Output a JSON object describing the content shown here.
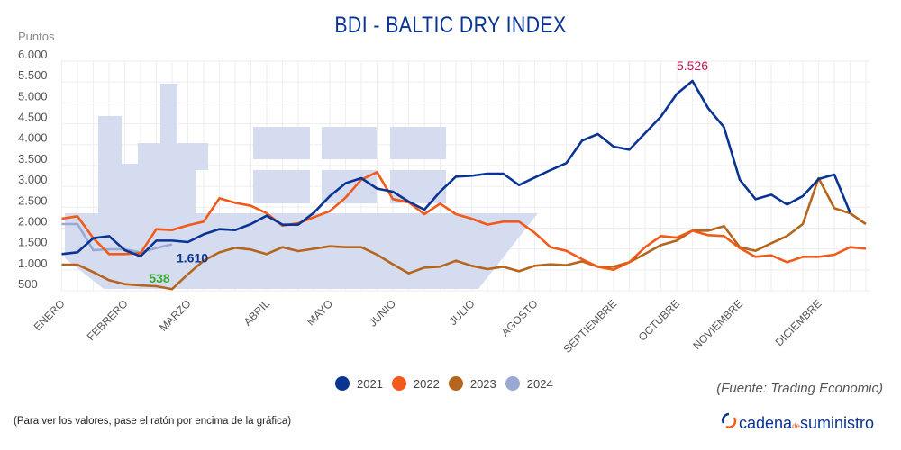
{
  "chart_data": {
    "type": "line",
    "title": "BDI - BALTIC DRY INDEX",
    "ylabel": "Puntos",
    "ylim": [
      500,
      6000
    ],
    "yticks": [
      "500",
      "1.000",
      "1.500",
      "2.000",
      "2.500",
      "3.000",
      "3.500",
      "4.000",
      "4.500",
      "5.000",
      "5.500",
      "6.000"
    ],
    "ytick_values": [
      500,
      1000,
      1500,
      2000,
      2500,
      3000,
      3500,
      4000,
      4500,
      5000,
      5500,
      6000
    ],
    "grid": true,
    "legend_placement": "bottom",
    "months": [
      {
        "label": "ENERO",
        "index": 0
      },
      {
        "label": "FEBRERO",
        "index": 4
      },
      {
        "label": "MARZO",
        "index": 8
      },
      {
        "label": "ABRIL",
        "index": 13
      },
      {
        "label": "MAYO",
        "index": 17
      },
      {
        "label": "JUNIO",
        "index": 21
      },
      {
        "label": "JULIO",
        "index": 26
      },
      {
        "label": "AGOSTO",
        "index": 30
      },
      {
        "label": "SEPTIEMBRE",
        "index": 35
      },
      {
        "label": "OCTUBRE",
        "index": 39
      },
      {
        "label": "NOVIEMBRE",
        "index": 43
      },
      {
        "label": "DICIEMBRE",
        "index": 48
      }
    ],
    "series": [
      {
        "name": "2021",
        "color": "#0a3494",
        "values": [
          1377,
          1420,
          1758,
          1808,
          1470,
          1327,
          1700,
          1700,
          1665,
          1850,
          1974,
          1952,
          2096,
          2297,
          2082,
          2082,
          2370,
          2765,
          3074,
          3196,
          2945,
          2873,
          2635,
          2441,
          2873,
          3232,
          3253,
          3304,
          3304,
          3030,
          3210,
          3390,
          3556,
          4095,
          4253,
          3951,
          3879,
          4275,
          4670,
          5209,
          5526,
          4872,
          4418,
          3160,
          2693,
          2801,
          2564,
          2765,
          3175,
          3282,
          2369
        ]
      },
      {
        "name": "2022",
        "color": "#f15a1a",
        "values": [
          2225,
          2283,
          1758,
          1377,
          1377,
          1399,
          1974,
          1952,
          2067,
          2154,
          2714,
          2606,
          2534,
          2355,
          2060,
          2117,
          2261,
          2405,
          2729,
          3160,
          3340,
          2693,
          2621,
          2333,
          2585,
          2333,
          2225,
          2082,
          2154,
          2154,
          1888,
          1542,
          1456,
          1255,
          1075,
          1003,
          1183,
          1542,
          1808,
          1772,
          1938,
          1830,
          1808,
          1521,
          1312,
          1348,
          1183,
          1312,
          1312,
          1363,
          1542,
          1507
        ]
      },
      {
        "name": "2023",
        "color": "#b5651d",
        "values": [
          1125,
          1125,
          946,
          752,
          658,
          629,
          608,
          538,
          895,
          1219,
          1420,
          1528,
          1485,
          1377,
          1542,
          1449,
          1506,
          1564,
          1542,
          1542,
          1363,
          1133,
          917,
          1054,
          1075,
          1219,
          1097,
          1018,
          1075,
          967,
          1097,
          1133,
          1111,
          1205,
          1075,
          1075,
          1183,
          1384,
          1593,
          1700,
          1938,
          1938,
          2046,
          1542,
          1456,
          1636,
          1808,
          2096,
          3196,
          2477,
          2355,
          2096
        ]
      },
      {
        "name": "2024",
        "color": "#9aa8d4",
        "values": [
          2096,
          2096,
          1470,
          1492,
          1492,
          1420,
          1521,
          1610
        ]
      }
    ],
    "annotations": [
      {
        "text": "5.526",
        "series": "2021",
        "index": 40,
        "color": "#c2185b"
      },
      {
        "text": "1.610",
        "series": "2024",
        "index": 7,
        "color": "#0a3494"
      },
      {
        "text": "538",
        "series": "2023",
        "index": 7,
        "color": "#3aa935"
      }
    ]
  },
  "footer": {
    "source": "(Fuente: Trading Economic)",
    "note": "(Para ver los valores, pase el ratón por encima de la gráfica)",
    "logo_text": "cadena de suministro"
  },
  "colors": {
    "ship": "#d5dcef",
    "grid": "#eeeeee",
    "title": "#0a3494"
  }
}
